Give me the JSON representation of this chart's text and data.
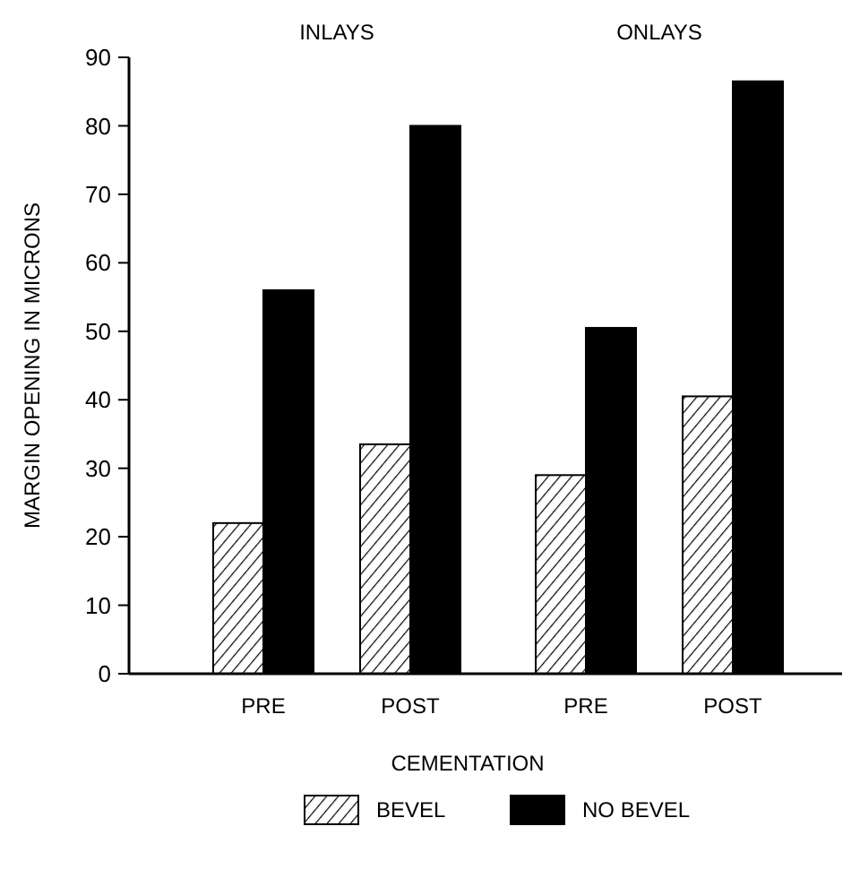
{
  "chart_data": {
    "type": "bar",
    "categories": [
      "PRE",
      "POST",
      "PRE",
      "POST"
    ],
    "series": [
      {
        "name": "BEVEL",
        "color": "#ffffff",
        "values": [
          22,
          33.5,
          29,
          40.5
        ]
      },
      {
        "name": "NO BEVEL",
        "color": "#000000",
        "values": [
          56,
          80,
          50.5,
          86.5
        ]
      }
    ],
    "xlabel": "CEMENTATION",
    "ylabel": "MARGIN OPENING IN MICRONS",
    "annotations": [
      "INLAYS",
      "ONLAYS"
    ],
    "ylim": [
      0,
      90
    ],
    "yticks": [
      0,
      10,
      20,
      30,
      40,
      50,
      60,
      70,
      80,
      90
    ],
    "legend": "bottom",
    "grid": false
  }
}
